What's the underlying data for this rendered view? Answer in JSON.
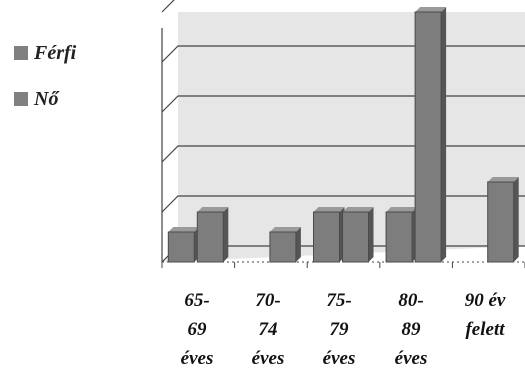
{
  "legend": [
    {
      "label": "Férfi",
      "color": "#808080"
    },
    {
      "label": "Nő",
      "color": "#808080"
    }
  ],
  "chart_data": {
    "type": "bar",
    "categories": [
      [
        "65-",
        "69",
        "éves"
      ],
      [
        "70-",
        "74",
        "éves"
      ],
      [
        "75-",
        "79",
        "éves"
      ],
      [
        "80-",
        "89",
        "éves"
      ],
      [
        "90 év",
        "felett"
      ]
    ],
    "series": [
      {
        "name": "Férfi",
        "values": [
          0.6,
          0,
          1,
          1,
          0
        ]
      },
      {
        "name": "Nő",
        "values": [
          1,
          0.6,
          1,
          5,
          1.6
        ]
      }
    ],
    "ylim": [
      0,
      5
    ],
    "gridlines": true,
    "legend_position": "left",
    "colors": {
      "bar": "#7d7d7d",
      "bar_dark": "#555555",
      "plot_bg": "#e6e6e6",
      "grid": "#444444"
    }
  }
}
